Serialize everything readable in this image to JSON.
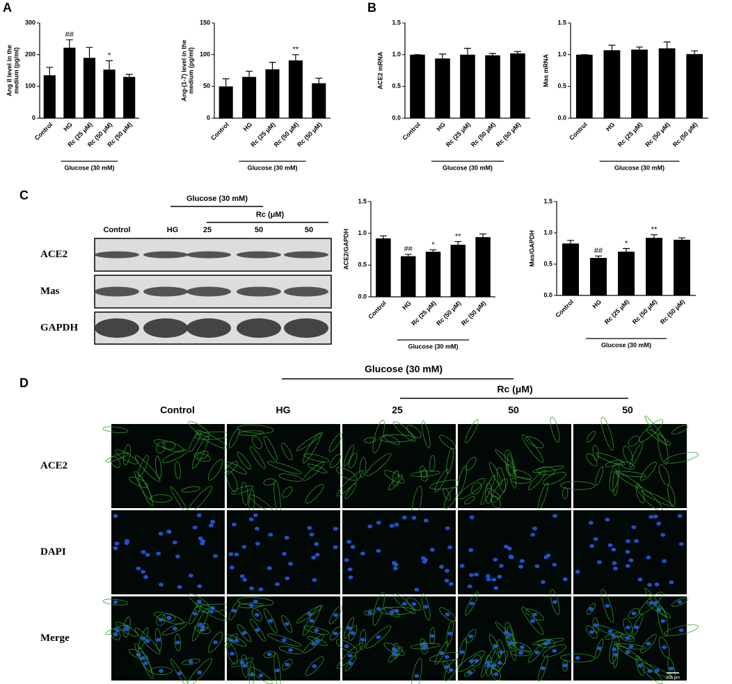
{
  "panel_labels": [
    "A",
    "B",
    "C",
    "D"
  ],
  "chart_data": [
    {
      "type": "bar",
      "ylabel": [
        "Ang II level in the",
        "medium (pg/ml)"
      ],
      "categories": [
        "Control",
        "HG",
        "Rc (25 μM)",
        "Rc (50 μM)",
        "Rc (50 μM)"
      ],
      "values": [
        135,
        222,
        190,
        153,
        130
      ],
      "errors": [
        25,
        25,
        33,
        28,
        8
      ],
      "significance": [
        null,
        "##",
        null,
        "*",
        null
      ],
      "color": "#000000",
      "ylim": [
        0,
        300
      ],
      "yticks": [
        0,
        100,
        200,
        300
      ],
      "group_label": "Glucose (30 mM)"
    },
    {
      "type": "bar",
      "ylabel": [
        "Ang-(1-7) level in the",
        "medium (pg/ml)"
      ],
      "categories": [
        "Control",
        "HG",
        "Rc (25 μM)",
        "Rc (50 μM)",
        "Rc (50 μM)"
      ],
      "values": [
        50,
        65,
        77,
        91,
        55
      ],
      "errors": [
        12,
        9,
        11,
        9,
        8
      ],
      "significance": [
        null,
        null,
        null,
        "**",
        null
      ],
      "color": "#000000",
      "ylim": [
        0,
        150
      ],
      "yticks": [
        0,
        50,
        100,
        150
      ],
      "group_label": "Glucose (30 mM)"
    },
    {
      "type": "bar",
      "ylabel": [
        "ACE2 mRNA"
      ],
      "categories": [
        "Control",
        "HG",
        "Rc (25 μM)",
        "Rc (50 μM)",
        "Rc (50 μM)"
      ],
      "values": [
        1.0,
        0.94,
        1.0,
        0.99,
        1.02
      ],
      "errors": [
        0,
        0.07,
        0.1,
        0.03,
        0.03
      ],
      "color": "#000000",
      "ylim": [
        0,
        1.5
      ],
      "yticks": [
        {
          "value": 0,
          "label": "0.0"
        },
        0.5,
        {
          "value": 1,
          "label": "1.0"
        },
        1.5
      ],
      "group_label": "Glucose (30 mM)"
    },
    {
      "type": "bar",
      "ylabel": [
        "Mas mRNA"
      ],
      "categories": [
        "Control",
        "HG",
        "Rc (25 μM)",
        "Rc (50 μM)",
        "Rc (50 μM)"
      ],
      "values": [
        1.0,
        1.07,
        1.08,
        1.1,
        1.01
      ],
      "errors": [
        0,
        0.08,
        0.04,
        0.1,
        0.05
      ],
      "color": "#000000",
      "ylim": [
        0,
        1.5
      ],
      "yticks": [
        {
          "value": 0,
          "label": "0.0"
        },
        0.5,
        {
          "value": 1,
          "label": "1.0"
        },
        1.5
      ],
      "group_label": "Glucose (30 mM)"
    },
    {
      "type": "bar",
      "ylabel": [
        "ACE2/GAPDH"
      ],
      "categories": [
        "Control",
        "HG",
        "Rc (25 μM)",
        "Rc (50 μM)",
        "Rc (50 μM)"
      ],
      "values": [
        0.92,
        0.64,
        0.71,
        0.82,
        0.94
      ],
      "errors": [
        0.04,
        0.03,
        0.03,
        0.05,
        0.05
      ],
      "significance": [
        null,
        "##",
        "*",
        "**",
        null
      ],
      "color": "#000000",
      "ylim": [
        0,
        1.5
      ],
      "yticks": [
        {
          "value": 0,
          "label": "0.0"
        },
        0.5,
        {
          "value": 1,
          "label": "1.0"
        },
        1.5
      ],
      "group_label": "Glucose (30 mM)"
    },
    {
      "type": "bar",
      "ylabel": [
        "Mas/GAPDH"
      ],
      "categories": [
        "Control",
        "HG",
        "Rc (25 μM)",
        "Rc (50 μM)",
        "Rc (50 μM)"
      ],
      "values": [
        0.83,
        0.6,
        0.7,
        0.92,
        0.89
      ],
      "errors": [
        0.05,
        0.03,
        0.05,
        0.05,
        0.03
      ],
      "significance": [
        null,
        "##",
        "*",
        "**",
        null
      ],
      "color": "#000000",
      "ylim": [
        0,
        1.5
      ],
      "yticks": [
        {
          "value": 0,
          "label": "0.0"
        },
        0.5,
        {
          "value": 1,
          "label": "1.0"
        },
        1.5
      ],
      "group_label": "Glucose (30 mM)"
    }
  ],
  "blot": {
    "header": "Glucose (30 mM)",
    "subheader": "Rc (μM)",
    "lanes": [
      "Control",
      "HG",
      "25",
      "50",
      "50"
    ],
    "rows": [
      "ACE2",
      "Mas",
      "GAPDH"
    ]
  },
  "immunofluorescence": {
    "header": "Glucose (30 mM)",
    "subheader": "Rc (μM)",
    "columns": [
      "Control",
      "HG",
      "25",
      "50",
      "50"
    ],
    "rows": [
      "ACE2",
      "DAPI",
      "Merge"
    ],
    "scale_bar": "200 μm"
  }
}
